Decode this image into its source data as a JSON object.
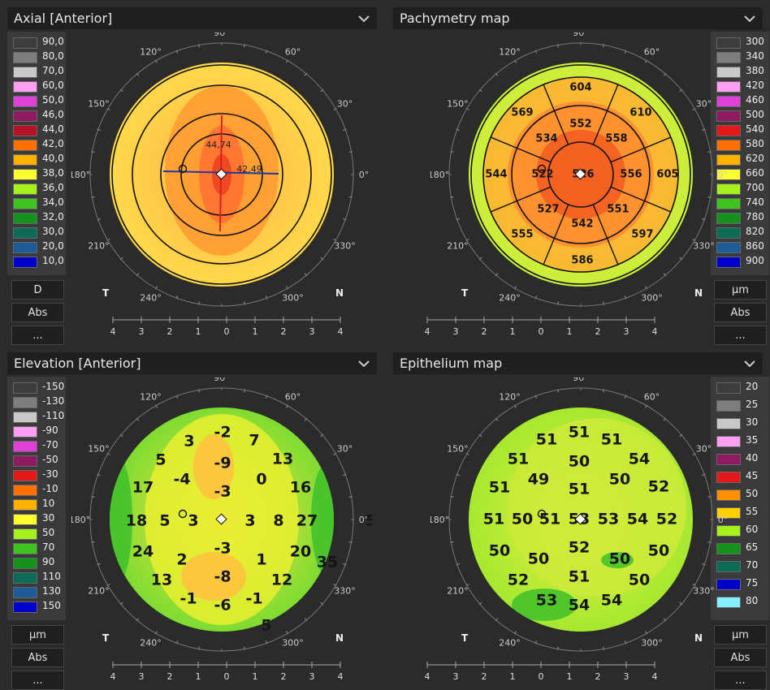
{
  "panels": [
    {
      "title": "Axial [Anterior]",
      "map": "axial",
      "scale": [
        "90,0",
        "80,0",
        "70,0",
        "60,0",
        "50,0",
        "46,0",
        "44,0",
        "42,0",
        "40,0",
        "38,0",
        "36,0",
        "34,0",
        "32,0",
        "30,0",
        "20,0",
        "10,0"
      ],
      "colors": [
        "#3c3c3c",
        "#7e7e7e",
        "#c9c9c9",
        "#ff9ff4",
        "#e040d8",
        "#8f1a62",
        "#b41227",
        "#ff7000",
        "#ffb000",
        "#ffff30",
        "#a6f01c",
        "#3fc320",
        "#15921b",
        "#0d6b55",
        "#1e5b9a",
        "#0000cc"
      ],
      "colors_extra": [
        "#1ea0ff",
        "#86efff"
      ],
      "buttons": [
        "D",
        "Abs",
        "..."
      ],
      "numbers": [],
      "labels": [
        "44,74",
        "42,49"
      ]
    },
    {
      "title": "Pachymetry map",
      "map": "pachy",
      "scale": [
        "300",
        "340",
        "380",
        "420",
        "460",
        "500",
        "540",
        "580",
        "620",
        "660",
        "700",
        "740",
        "780",
        "820",
        "860",
        "900"
      ],
      "colors": [
        "#3c3c3c",
        "#7e7e7e",
        "#c9c9c9",
        "#ff9ff4",
        "#e040d8",
        "#8f1a62",
        "#e41818",
        "#ff7000",
        "#ffb000",
        "#ffff30",
        "#a6f01c",
        "#3fc320",
        "#15921b",
        "#0d6b55",
        "#1e5b9a",
        "#0000cc"
      ],
      "buttons": [
        "µm",
        "Abs",
        "..."
      ],
      "numbers": [
        "604",
        "569",
        "552",
        "610",
        "534",
        "558",
        "544",
        "522",
        "526",
        "556",
        "605",
        "527",
        "542",
        "551",
        "555",
        "597",
        "586"
      ]
    },
    {
      "title": "Elevation [Anterior]",
      "map": "elev",
      "scale": [
        "-150",
        "-130",
        "-110",
        "-90",
        "-70",
        "-50",
        "-30",
        "-10",
        "10",
        "30",
        "50",
        "70",
        "90",
        "110",
        "130",
        "150"
      ],
      "colors": [
        "#3c3c3c",
        "#7e7e7e",
        "#c9c9c9",
        "#ff9ff4",
        "#e040d8",
        "#8f1a62",
        "#e41818",
        "#ff7000",
        "#ffb000",
        "#ffff30",
        "#a6f01c",
        "#3fc320",
        "#15921b",
        "#0d6b55",
        "#1e5b9a",
        "#0000cc"
      ],
      "buttons": [
        "µm",
        "Abs",
        "..."
      ],
      "numbers": [
        "-2",
        "3",
        "7",
        "5",
        "-9",
        "13",
        "-4",
        "0",
        "17",
        "-3",
        "16",
        "18",
        "5",
        "3",
        "3",
        "8",
        "27",
        "50",
        "-3",
        "24",
        "2",
        "1",
        "20",
        "35",
        "-8",
        "13",
        "12",
        "-1",
        "-6",
        "-1",
        "5"
      ]
    },
    {
      "title": "Epithelium map",
      "map": "epi",
      "scale": [
        "20",
        "25",
        "30",
        "35",
        "40",
        "45",
        "50",
        "55",
        "60",
        "65",
        "70",
        "75",
        "80"
      ],
      "colors": [
        "#3c3c3c",
        "#7e7e7e",
        "#c9c9c9",
        "#ff9ff4",
        "#8f1a62",
        "#e41818",
        "#ff9000",
        "#ffd000",
        "#a6f01c",
        "#15921b",
        "#0d6b55",
        "#0000cc",
        "#86efff"
      ],
      "buttons": [
        "µm",
        "Abs",
        "..."
      ],
      "numbers": [
        "51",
        "51",
        "51",
        "51",
        "50",
        "54",
        "51",
        "49",
        "51",
        "50",
        "52",
        "51",
        "50",
        "51",
        "53",
        "53",
        "54",
        "52",
        "50",
        "50",
        "52",
        "50",
        "50",
        "52",
        "51",
        "50",
        "53",
        "54",
        "54"
      ]
    }
  ],
  "angles": [
    "90°",
    "60°",
    "30°",
    "0°",
    "330°",
    "300°",
    "270°",
    "240°",
    "210°",
    "180°",
    "150°",
    "120°"
  ],
  "side_labels": {
    "temporal": "T",
    "nasal": "N"
  },
  "ruler_ticks": [
    "4",
    "3",
    "2",
    "1",
    "0",
    "1",
    "2",
    "3",
    "4"
  ]
}
